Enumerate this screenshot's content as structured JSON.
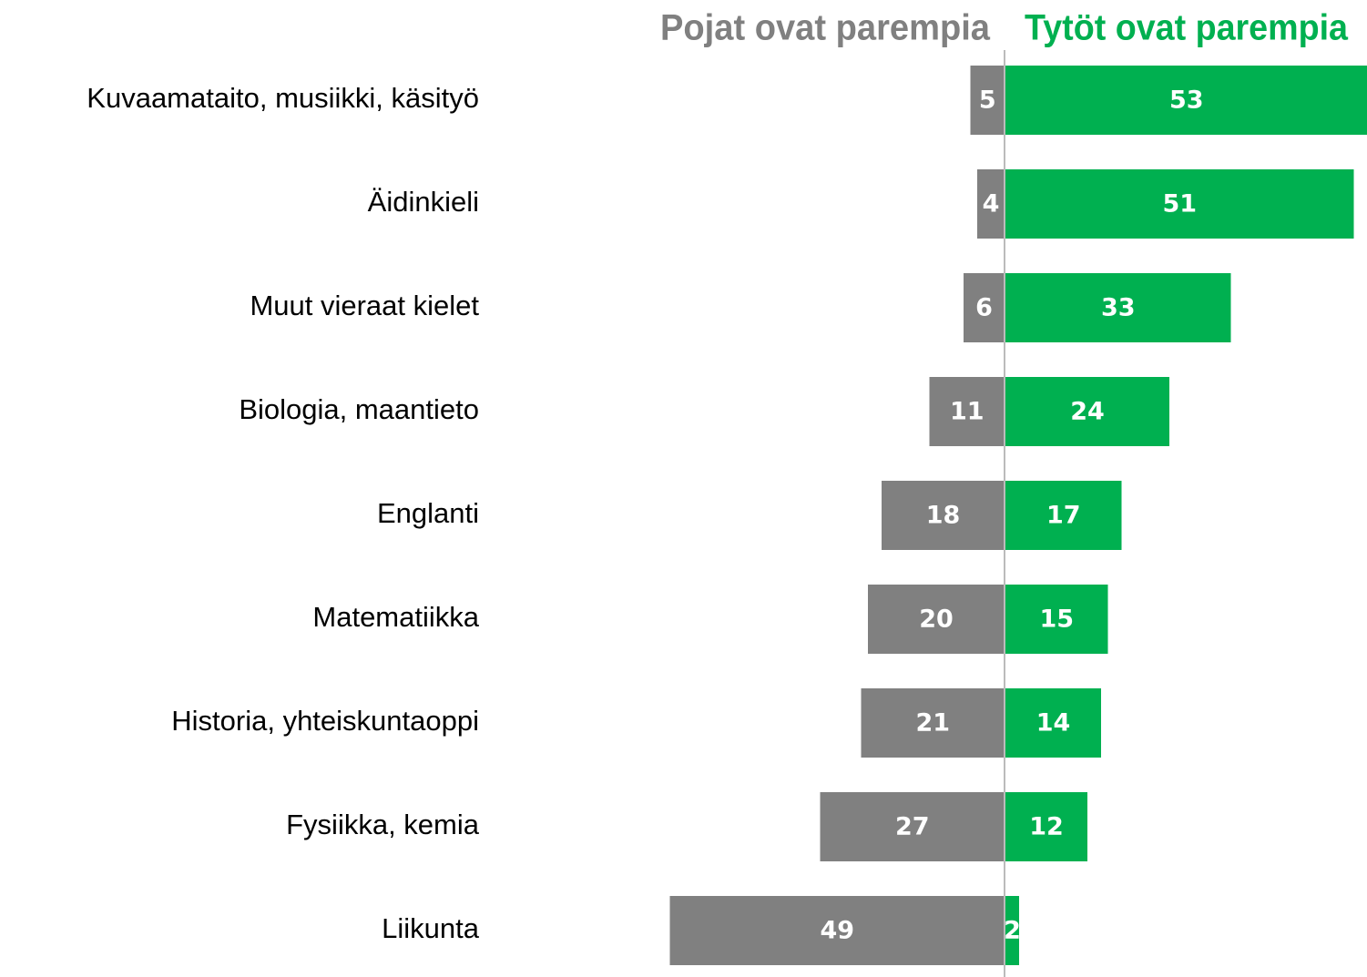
{
  "chart_data": {
    "type": "bar",
    "orientation": "diverging",
    "categories": [
      "Kuvaamataito, musiikki, käsityö",
      "Äidinkieli",
      "Muut vieraat kielet",
      "Biologia, maantieto",
      "Englanti",
      "Matematiikka",
      "Historia, yhteiskuntaoppi",
      "Fysiikka, kemia",
      "Liikunta"
    ],
    "series": [
      {
        "name": "Pojat ovat parempia",
        "color": "#808080",
        "values": [
          5,
          4,
          6,
          11,
          18,
          20,
          21,
          27,
          49
        ]
      },
      {
        "name": "Tytöt ovat parempia",
        "color": "#00b050",
        "values": [
          53,
          51,
          33,
          24,
          17,
          15,
          14,
          12,
          2
        ]
      }
    ]
  }
}
